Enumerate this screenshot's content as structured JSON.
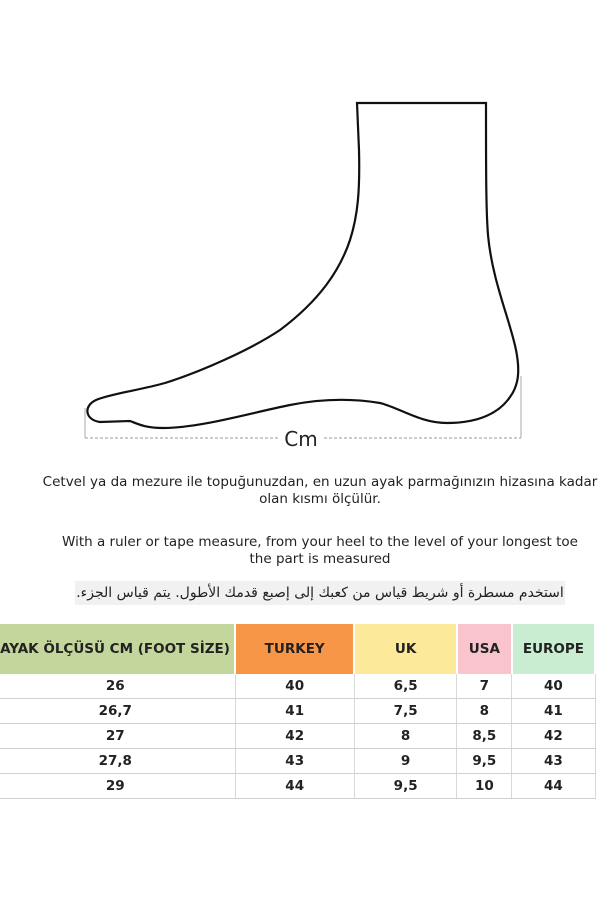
{
  "illustration": {
    "measure_label": "Cm"
  },
  "instructions": {
    "turkish_line1": "Cetvel ya da mezure ile topuğunuzdan, en uzun ayak parmağınızın hizasına kadar",
    "turkish_line2": "olan kısmı ölçülür.",
    "english_line1": "With a ruler or tape measure, from your heel to the level of your longest toe",
    "english_line2": "the part is measured",
    "arabic": "استخدم مسطرة أو شريط قياس من كعبك إلى إصبع قدمك الأطول. يتم قياس الجزء."
  },
  "size_table": {
    "headers": [
      "AYAK ÖLÇÜSÜ CM (FOOT SİZE)",
      "TURKEY",
      "UK",
      "USA",
      "EUROPE"
    ],
    "header_colors": [
      "#c3d79c",
      "#f79646",
      "#fde99a",
      "#f9c4cc",
      "#c8edd0"
    ],
    "rows": [
      [
        "26",
        "40",
        "6,5",
        "7",
        "40"
      ],
      [
        "26,7",
        "41",
        "7,5",
        "8",
        "41"
      ],
      [
        "27",
        "42",
        "8",
        "8,5",
        "42"
      ],
      [
        "27,8",
        "43",
        "9",
        "9,5",
        "43"
      ],
      [
        "29",
        "44",
        "9,5",
        "10",
        "44"
      ]
    ]
  }
}
